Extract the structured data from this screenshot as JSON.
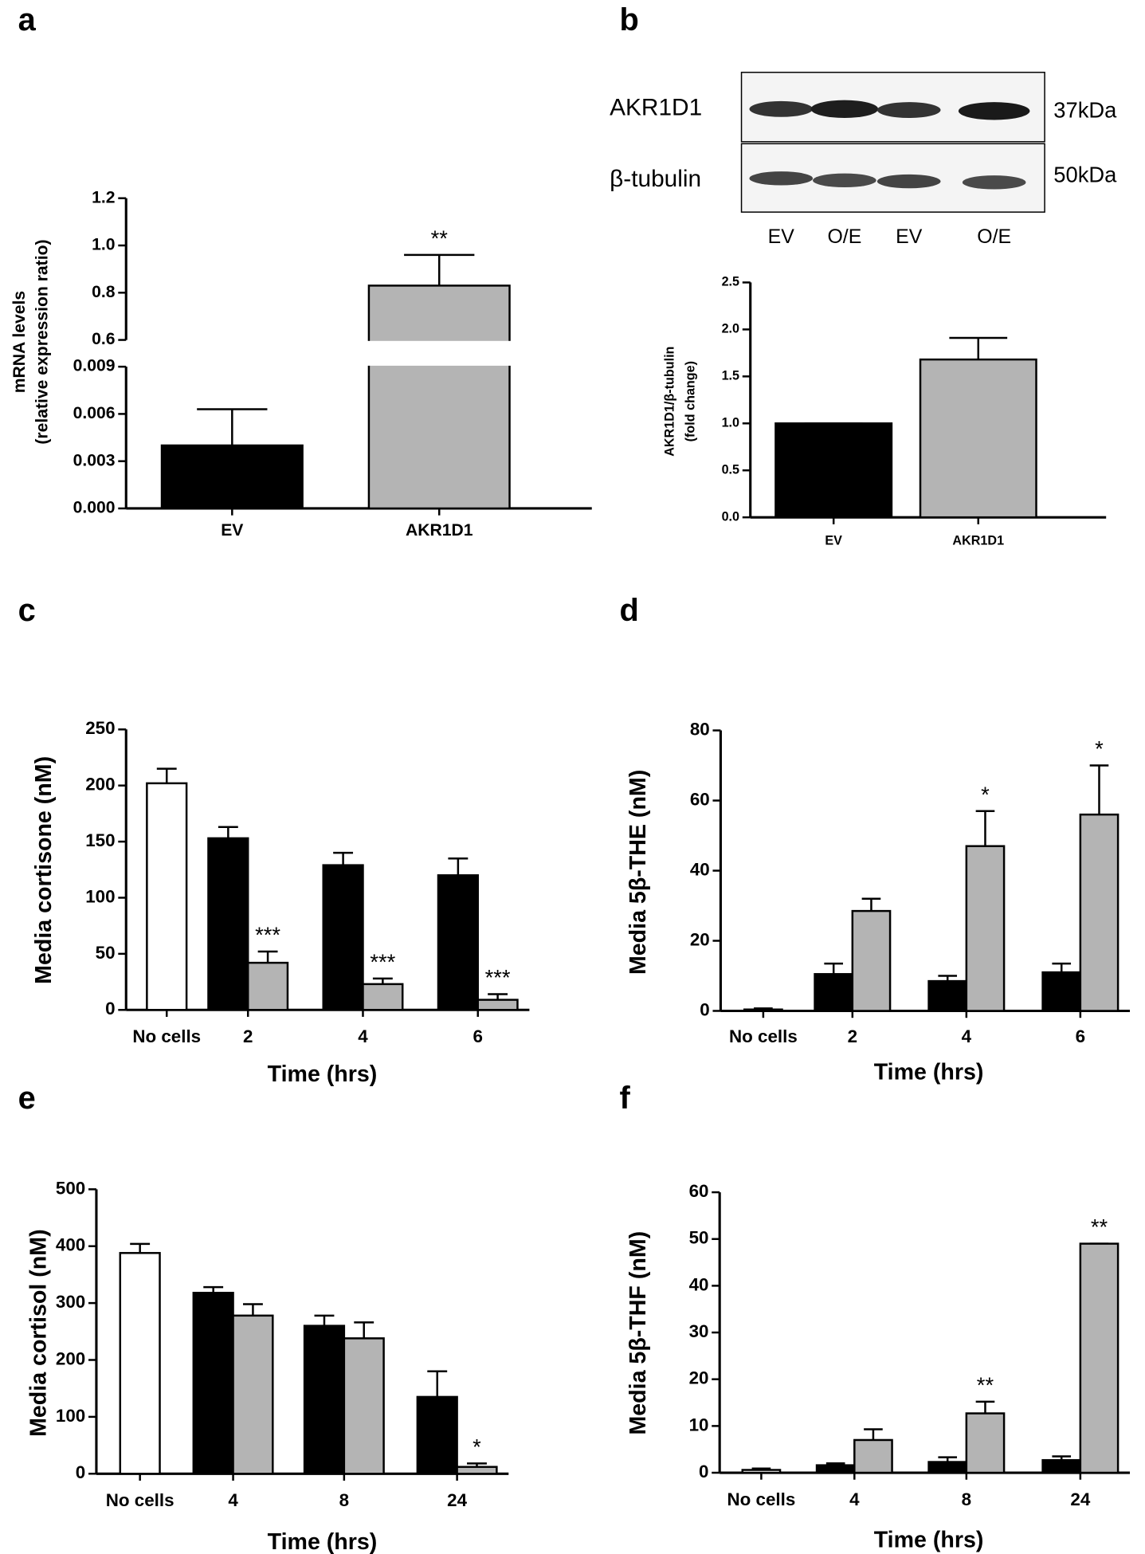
{
  "blot": {
    "rows": [
      "AKR1D1",
      "β-tubulin"
    ],
    "sizes": [
      "37kDa",
      "50kDa"
    ],
    "lanes": [
      "EV",
      "O/E",
      "EV",
      "O/E"
    ]
  },
  "chart_data": [
    {
      "panel": "a",
      "type": "bar",
      "ylabel": [
        "mRNA levels",
        "(relative expression ratio)"
      ],
      "categories": [
        "EV",
        "AKR1D1"
      ],
      "ylim": [
        0,
        1.2
      ],
      "y_break": [
        0.009,
        0.6
      ],
      "yticks": [
        {
          "value": 0,
          "label": "0.000"
        },
        0.003,
        0.006,
        0.009,
        0.6,
        0.8,
        {
          "value": 1,
          "label": "1.0"
        },
        1.2
      ],
      "series": [
        {
          "color": "#000000",
          "values": [
            0.004,
            null
          ],
          "errors": [
            0.0023,
            null
          ]
        },
        {
          "color": "#b4b4b4",
          "values": [
            null,
            0.83
          ],
          "errors": [
            null,
            0.13
          ],
          "significance": [
            null,
            "**"
          ]
        }
      ]
    },
    {
      "panel": "b",
      "type": "bar",
      "ylabel": [
        "AKR1D1/β-tubulin",
        "(fold change)"
      ],
      "categories": [
        "EV",
        "AKR1D1"
      ],
      "ylim": [
        0,
        2.5
      ],
      "yticks": [
        {
          "value": 0,
          "label": "0.0"
        },
        0.5,
        {
          "value": 1,
          "label": "1.0"
        },
        1.5,
        {
          "value": 2,
          "label": "2.0"
        },
        2.5
      ],
      "series": [
        {
          "color": "#000000",
          "values": [
            1.0,
            null
          ],
          "errors": [
            0,
            null
          ]
        },
        {
          "color": "#b4b4b4",
          "values": [
            null,
            1.68
          ],
          "errors": [
            null,
            0.23
          ]
        }
      ]
    },
    {
      "panel": "c",
      "type": "bar",
      "ylabel": [
        "Media cortisone (nM)"
      ],
      "xlabel": "Time (hrs)",
      "categories": [
        "No cells",
        "2",
        "4",
        "6"
      ],
      "ylim": [
        0,
        250
      ],
      "yticks": [
        0,
        50,
        100,
        150,
        200,
        250
      ],
      "series": [
        {
          "color": "#ffffff",
          "values": [
            202,
            null,
            null,
            null
          ],
          "errors": [
            13,
            null,
            null,
            null
          ]
        },
        {
          "color": "#000000",
          "values": [
            null,
            153,
            129,
            120
          ],
          "errors": [
            null,
            10,
            11,
            15
          ]
        },
        {
          "color": "#b4b4b4",
          "values": [
            null,
            42,
            23,
            9
          ],
          "errors": [
            null,
            10,
            5,
            5
          ],
          "significance": [
            null,
            "***",
            "***",
            "***"
          ]
        }
      ]
    },
    {
      "panel": "d",
      "type": "bar",
      "ylabel": [
        "Media 5β-THE (nM)"
      ],
      "xlabel": "Time (hrs)",
      "categories": [
        "No cells",
        "2",
        "4",
        "6"
      ],
      "ylim": [
        0,
        80
      ],
      "yticks": [
        0,
        20,
        40,
        60,
        80
      ],
      "series": [
        {
          "color": "#ffffff",
          "values": [
            0.4,
            null,
            null,
            null
          ],
          "errors": [
            0.3,
            null,
            null,
            null
          ]
        },
        {
          "color": "#000000",
          "values": [
            null,
            10.5,
            8.5,
            11
          ],
          "errors": [
            null,
            3,
            1.5,
            2.5
          ]
        },
        {
          "color": "#b4b4b4",
          "values": [
            null,
            28.5,
            47,
            56
          ],
          "errors": [
            null,
            3.5,
            10,
            14
          ],
          "significance": [
            null,
            null,
            "*",
            "*"
          ]
        }
      ]
    },
    {
      "panel": "e",
      "type": "bar",
      "ylabel": [
        "Media cortisol (nM)"
      ],
      "xlabel": "Time (hrs)",
      "categories": [
        "No cells",
        "4",
        "8",
        "24"
      ],
      "ylim": [
        0,
        500
      ],
      "yticks": [
        0,
        100,
        200,
        300,
        400,
        500
      ],
      "series": [
        {
          "color": "#ffffff",
          "values": [
            388,
            null,
            null,
            null
          ],
          "errors": [
            16,
            null,
            null,
            null
          ]
        },
        {
          "color": "#000000",
          "values": [
            null,
            318,
            260,
            135
          ],
          "errors": [
            null,
            10,
            18,
            45
          ]
        },
        {
          "color": "#b4b4b4",
          "values": [
            null,
            278,
            238,
            12
          ],
          "errors": [
            null,
            20,
            28,
            6
          ],
          "significance": [
            null,
            null,
            null,
            "*"
          ]
        }
      ]
    },
    {
      "panel": "f",
      "type": "bar",
      "ylabel": [
        "Media 5β-THF (nM)"
      ],
      "xlabel": "Time (hrs)",
      "categories": [
        "No cells",
        "4",
        "8",
        "24"
      ],
      "ylim": [
        0,
        60
      ],
      "yticks": [
        0,
        10,
        20,
        30,
        40,
        50,
        60
      ],
      "series": [
        {
          "color": "#ffffff",
          "values": [
            0.6,
            null,
            null,
            null
          ],
          "errors": [
            0.3,
            null,
            null,
            null
          ]
        },
        {
          "color": "#000000",
          "values": [
            null,
            1.6,
            2.3,
            2.7
          ],
          "errors": [
            null,
            0.4,
            1,
            0.8
          ]
        },
        {
          "color": "#b4b4b4",
          "values": [
            null,
            7,
            12.7,
            49
          ],
          "errors": [
            null,
            2.3,
            2.5,
            0
          ],
          "significance": [
            null,
            null,
            "**",
            "**"
          ]
        }
      ]
    }
  ]
}
